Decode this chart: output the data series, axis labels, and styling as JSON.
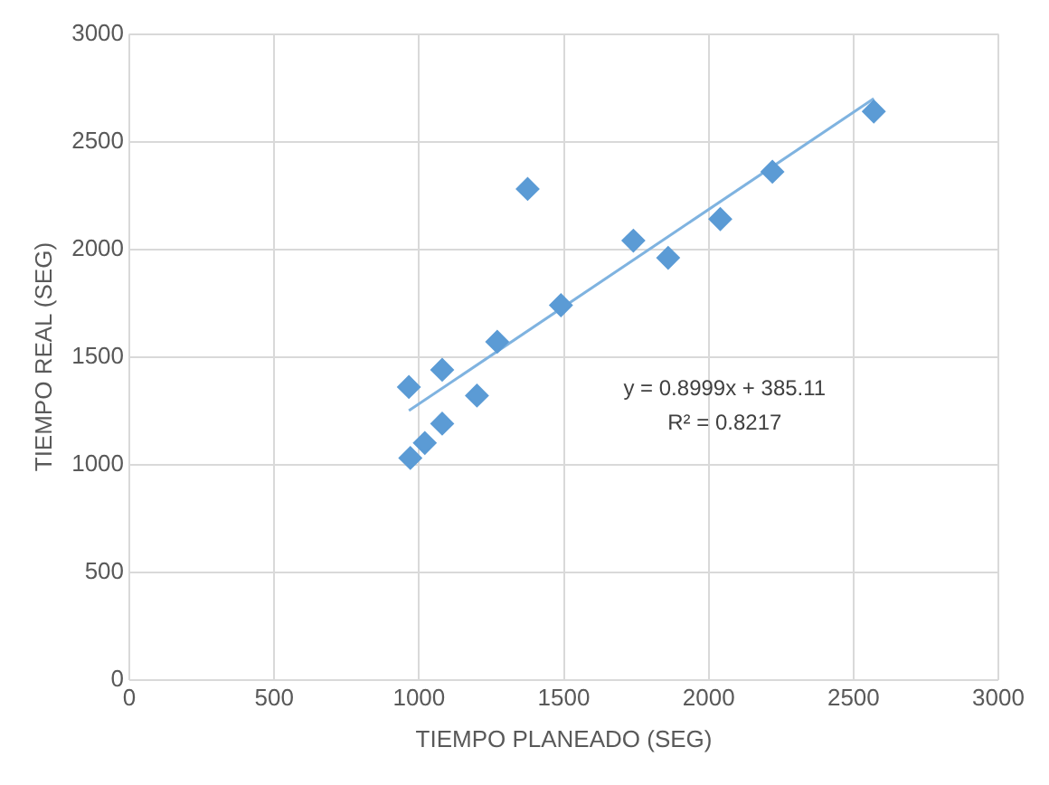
{
  "chart_data": {
    "type": "scatter",
    "xlabel": "TIEMPO PLANEADO (SEG)",
    "ylabel": "TIEMPO REAL (SEG)",
    "x": [
      970,
      1020,
      965,
      1080,
      1080,
      1200,
      1270,
      1375,
      1490,
      1740,
      1860,
      2040,
      2220,
      2570
    ],
    "series": [
      {
        "type": "scatter",
        "color": "#5b9bd5",
        "marker": "diamond",
        "values": [
          1030,
          1100,
          1360,
          1190,
          1440,
          1320,
          1570,
          2280,
          1740,
          2040,
          1960,
          2140,
          2360,
          2640
        ]
      },
      {
        "type": "line",
        "color": "#7fb3e0",
        "marker": "none",
        "x": [
          965,
          2570
        ],
        "values": [
          1250,
          2700
        ]
      }
    ],
    "xlim": [
      0,
      3000
    ],
    "xticks": [
      0,
      500,
      1000,
      1500,
      2000,
      2500,
      3000
    ],
    "ylim": [
      0,
      3000
    ],
    "yticks": [
      0,
      500,
      1000,
      1500,
      2000,
      2500,
      3000
    ],
    "grid": true,
    "annotations": [
      "y = 0.8999x + 385.11",
      "R² = 0.8217"
    ]
  }
}
